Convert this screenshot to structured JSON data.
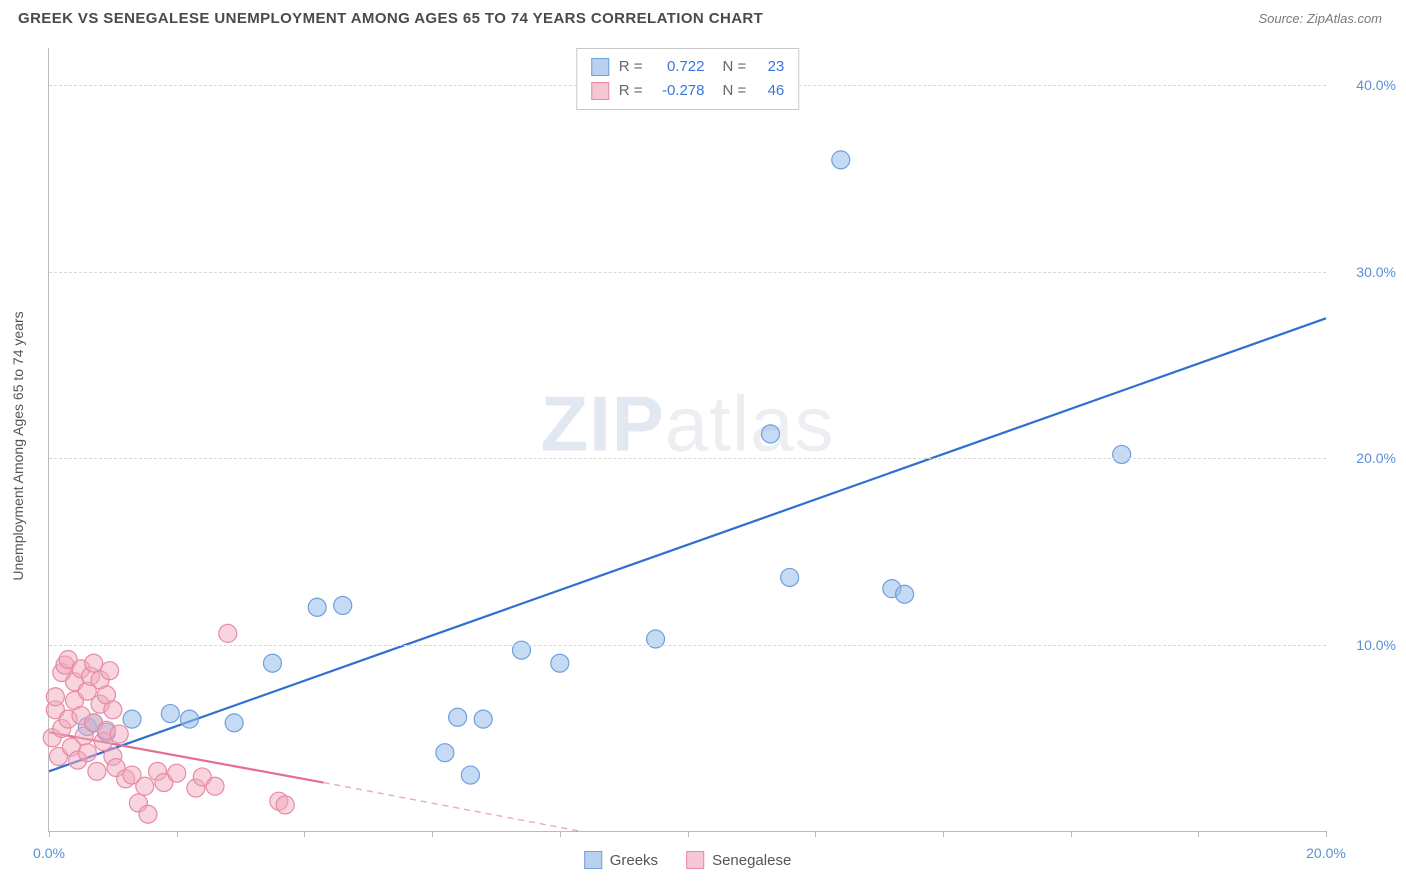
{
  "title": "GREEK VS SENEGALESE UNEMPLOYMENT AMONG AGES 65 TO 74 YEARS CORRELATION CHART",
  "source": "Source: ZipAtlas.com",
  "watermark_bold": "ZIP",
  "watermark_light": "atlas",
  "chart": {
    "type": "scatter",
    "y_axis_label": "Unemployment Among Ages 65 to 74 years",
    "background_color": "#ffffff",
    "grid_color": "#d8d8d8",
    "axis_color": "#bbbbbb",
    "tick_label_color": "#5b8fd6",
    "axis_label_color": "#555555",
    "xlim": [
      0,
      20
    ],
    "ylim": [
      0,
      42
    ],
    "y_ticks": [
      {
        "v": 10,
        "label": "10.0%"
      },
      {
        "v": 20,
        "label": "20.0%"
      },
      {
        "v": 30,
        "label": "30.0%"
      },
      {
        "v": 40,
        "label": "40.0%"
      }
    ],
    "x_ticks": [
      {
        "v": 0,
        "label": "0.0%"
      },
      {
        "v": 2,
        "label": ""
      },
      {
        "v": 4,
        "label": ""
      },
      {
        "v": 6,
        "label": ""
      },
      {
        "v": 8,
        "label": ""
      },
      {
        "v": 10,
        "label": ""
      },
      {
        "v": 12,
        "label": ""
      },
      {
        "v": 14,
        "label": ""
      },
      {
        "v": 16,
        "label": ""
      },
      {
        "v": 18,
        "label": ""
      },
      {
        "v": 20,
        "label": "20.0%"
      }
    ],
    "stats": [
      {
        "r_label": "R =",
        "r_value": "0.722",
        "n_label": "N =",
        "n_value": "23",
        "fill": "#b9d0ef",
        "stroke": "#6f9fdd"
      },
      {
        "r_label": "R =",
        "r_value": "-0.278",
        "n_label": "N =",
        "n_value": "46",
        "fill": "#f6c6d4",
        "stroke": "#e88aa6"
      }
    ],
    "legend": [
      {
        "label": "Greeks",
        "fill": "#b9d0ef",
        "stroke": "#6f9fdd"
      },
      {
        "label": "Senegalese",
        "fill": "#f6c6d4",
        "stroke": "#e88aa6"
      }
    ],
    "series": [
      {
        "name": "greeks",
        "marker_fill": "rgba(150,190,235,0.55)",
        "marker_stroke": "#6f9fdd",
        "marker_r": 9,
        "line_color": "#2f6fd0",
        "line_width": 2.2,
        "trend": {
          "x1": 0,
          "y1": 3.2,
          "x2": 20,
          "y2": 27.5
        },
        "points": [
          [
            0.6,
            5.6
          ],
          [
            0.7,
            5.8
          ],
          [
            0.9,
            5.3
          ],
          [
            1.3,
            6.0
          ],
          [
            1.9,
            6.3
          ],
          [
            2.2,
            6.0
          ],
          [
            2.9,
            5.8
          ],
          [
            3.5,
            9.0
          ],
          [
            4.2,
            12.0
          ],
          [
            4.6,
            12.1
          ],
          [
            6.2,
            4.2
          ],
          [
            6.4,
            6.1
          ],
          [
            6.8,
            6.0
          ],
          [
            6.6,
            3.0
          ],
          [
            7.4,
            9.7
          ],
          [
            8.0,
            9.0
          ],
          [
            9.5,
            10.3
          ],
          [
            11.3,
            21.3
          ],
          [
            11.6,
            13.6
          ],
          [
            12.4,
            36.0
          ],
          [
            13.2,
            13.0
          ],
          [
            13.4,
            12.7
          ],
          [
            16.8,
            20.2
          ]
        ]
      },
      {
        "name": "senegalese",
        "marker_fill": "rgba(240,170,190,0.5)",
        "marker_stroke": "#e88aa6",
        "marker_r": 9,
        "line_color": "#e26f92",
        "line_width": 2.2,
        "trend": {
          "x1": 0,
          "y1": 5.3,
          "x2": 4.3,
          "y2": 2.6
        },
        "trend_ext": {
          "x1": 4.3,
          "y1": 2.6,
          "x2": 8.3,
          "y2": 0.0,
          "dash": "6,5"
        },
        "points": [
          [
            0.05,
            5.0
          ],
          [
            0.1,
            6.5
          ],
          [
            0.1,
            7.2
          ],
          [
            0.15,
            4.0
          ],
          [
            0.2,
            8.5
          ],
          [
            0.2,
            5.5
          ],
          [
            0.25,
            8.9
          ],
          [
            0.3,
            6.0
          ],
          [
            0.3,
            9.2
          ],
          [
            0.35,
            4.5
          ],
          [
            0.4,
            7.0
          ],
          [
            0.4,
            8.0
          ],
          [
            0.45,
            3.8
          ],
          [
            0.5,
            6.2
          ],
          [
            0.5,
            8.7
          ],
          [
            0.55,
            5.1
          ],
          [
            0.6,
            7.5
          ],
          [
            0.6,
            4.2
          ],
          [
            0.65,
            8.3
          ],
          [
            0.7,
            5.8
          ],
          [
            0.7,
            9.0
          ],
          [
            0.75,
            3.2
          ],
          [
            0.8,
            6.8
          ],
          [
            0.8,
            8.1
          ],
          [
            0.85,
            4.8
          ],
          [
            0.9,
            7.3
          ],
          [
            0.9,
            5.4
          ],
          [
            0.95,
            8.6
          ],
          [
            1.0,
            4.0
          ],
          [
            1.0,
            6.5
          ],
          [
            1.05,
            3.4
          ],
          [
            1.1,
            5.2
          ],
          [
            1.2,
            2.8
          ],
          [
            1.3,
            3.0
          ],
          [
            1.4,
            1.5
          ],
          [
            1.5,
            2.4
          ],
          [
            1.55,
            0.9
          ],
          [
            1.7,
            3.2
          ],
          [
            1.8,
            2.6
          ],
          [
            2.0,
            3.1
          ],
          [
            2.3,
            2.3
          ],
          [
            2.4,
            2.9
          ],
          [
            2.6,
            2.4
          ],
          [
            2.8,
            10.6
          ],
          [
            3.6,
            1.6
          ],
          [
            3.7,
            1.4
          ]
        ]
      }
    ]
  }
}
